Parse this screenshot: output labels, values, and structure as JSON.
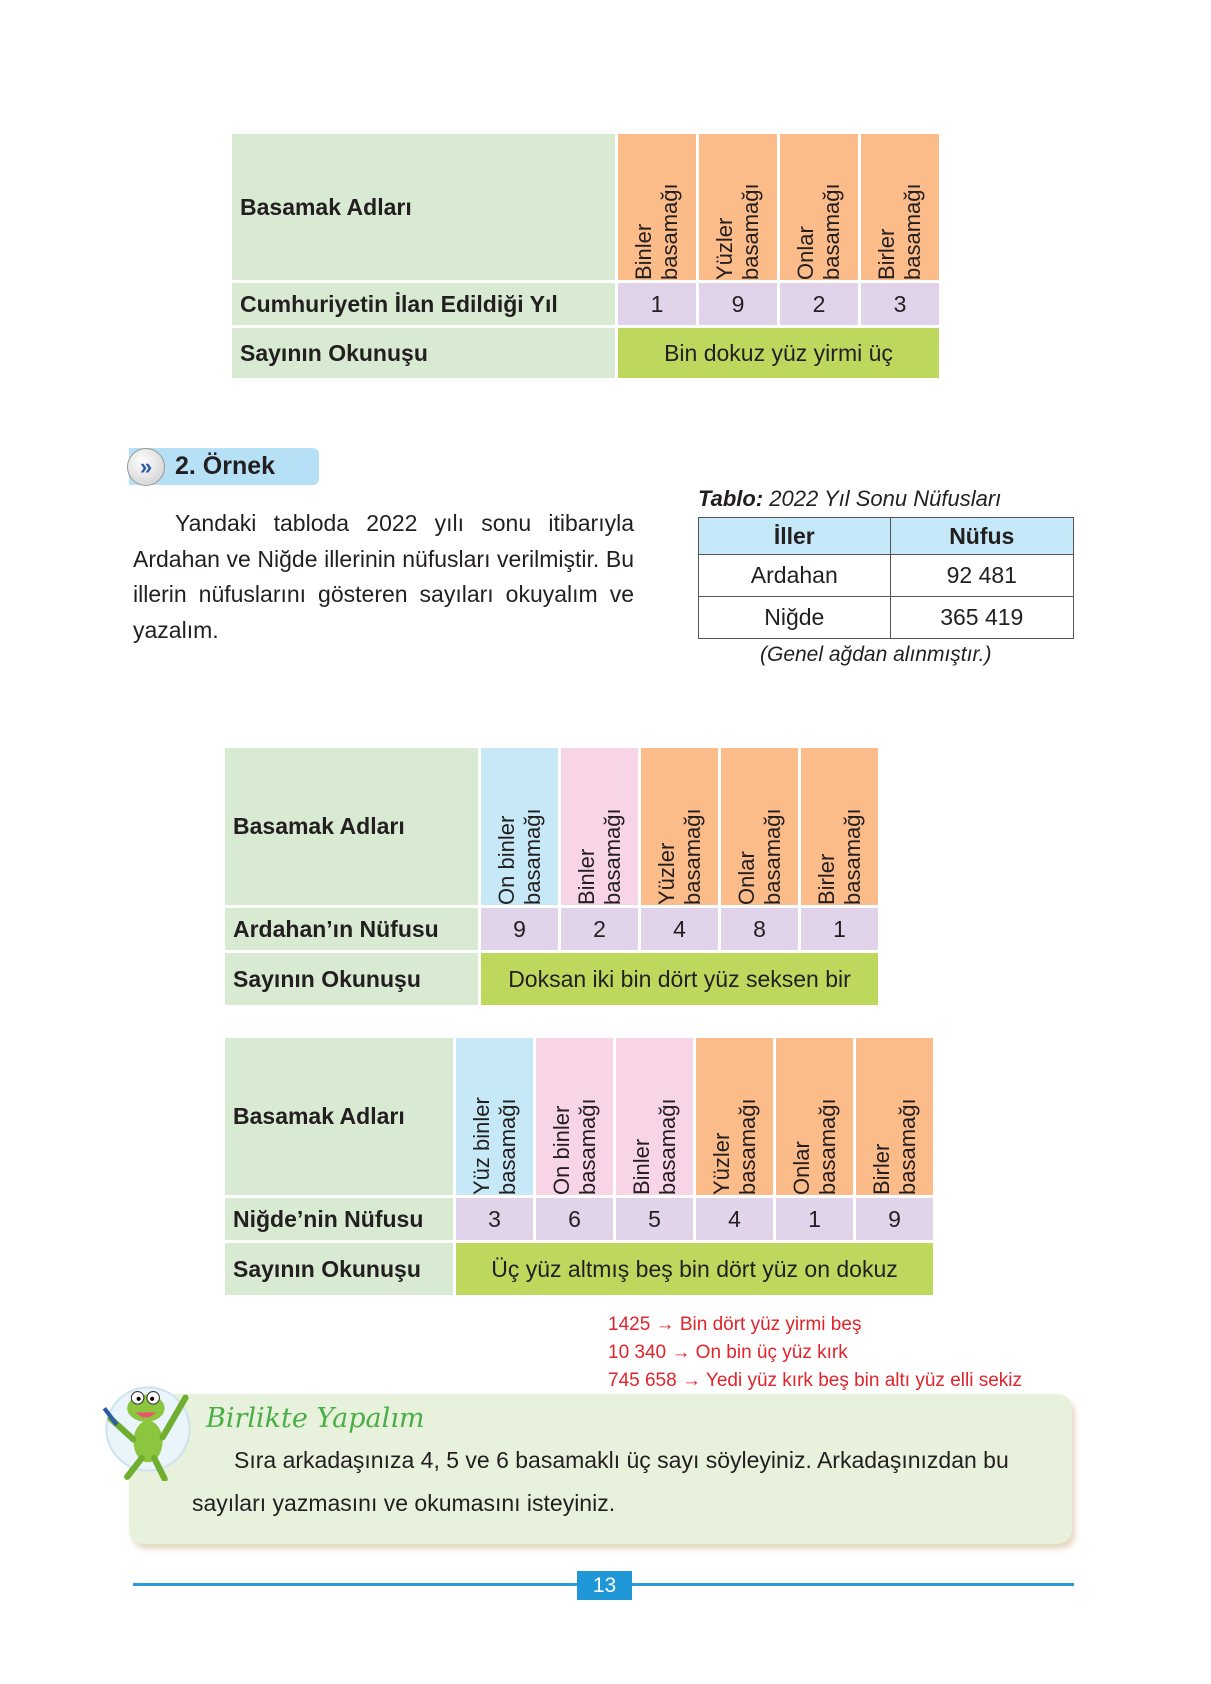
{
  "tables": [
    {
      "id": "t1",
      "label_header": "Basamak Adları",
      "row_label": "Cumhuriyetin İlan Edildiği Yıl",
      "reading_label": "Sayının Okunuşu",
      "columns": [
        {
          "name": "Binler basamağı",
          "color": "orange"
        },
        {
          "name": "Yüzler basamağı",
          "color": "orange"
        },
        {
          "name": "Onlar basamağı",
          "color": "orange"
        },
        {
          "name": "Birler basamağı",
          "color": "orange"
        }
      ],
      "digits": [
        "1",
        "9",
        "2",
        "3"
      ],
      "reading": "Bin dokuz yüz yirmi üç"
    },
    {
      "id": "t2",
      "label_header": "Basamak Adları",
      "row_label": "Ardahan’ın Nüfusu",
      "reading_label": "Sayının Okunuşu",
      "columns": [
        {
          "name": "On binler basamağı",
          "color": "blue"
        },
        {
          "name": "Binler basamağı",
          "color": "pink"
        },
        {
          "name": "Yüzler basamağı",
          "color": "orange"
        },
        {
          "name": "Onlar basamağı",
          "color": "orange"
        },
        {
          "name": "Birler basamağı",
          "color": "orange"
        }
      ],
      "digits": [
        "9",
        "2",
        "4",
        "8",
        "1"
      ],
      "reading": "Doksan iki bin dört yüz seksen bir"
    },
    {
      "id": "t3",
      "label_header": "Basamak Adları",
      "row_label": "Niğde’nin Nüfusu",
      "reading_label": "Sayının Okunuşu",
      "columns": [
        {
          "name": "Yüz binler basamağı",
          "color": "blue"
        },
        {
          "name": "On binler basamağı",
          "color": "pink"
        },
        {
          "name": "Binler basamağı",
          "color": "pink"
        },
        {
          "name": "Yüzler basamağı",
          "color": "orange"
        },
        {
          "name": "Onlar basamağı",
          "color": "orange"
        },
        {
          "name": "Birler basamağı",
          "color": "orange"
        }
      ],
      "digits": [
        "3",
        "6",
        "5",
        "4",
        "1",
        "9"
      ],
      "reading": "Üç yüz altmış beş bin dört yüz on dokuz"
    }
  ],
  "example": {
    "icon": "double-chevron-right-icon",
    "title": "2. Örnek",
    "paragraph": "Yandaki tabloda 2022 yılı sonu itibarıyla Ardahan ve Niğde illerinin nüfusları verilmiştir. Bu illerin nüfuslarını gösteren sayıları okuyalım ve yazalım."
  },
  "population_table": {
    "caption_bold": "Tablo:",
    "caption": " 2022 Yıl Sonu Nüfusları",
    "headers": [
      "İller",
      "Nüfus"
    ],
    "rows": [
      [
        "Ardahan",
        "92 481"
      ],
      [
        "Niğde",
        "365 419"
      ]
    ],
    "source": "(Genel ağdan alınmıştır.)"
  },
  "handwritten_notes": [
    "1425 → Bin dört yüz yirmi beş",
    "10 340 → On bin üç yüz kırk",
    "745 658 → Yedi yüz kırk beş bin altı yüz elli sekiz"
  ],
  "activity": {
    "mascot": "frog-mascot-icon",
    "title": "Birlikte Yapalım",
    "line1": "Sıra arkadaşınıza 4, 5 ve 6 basamaklı üç sayı söyleyiniz. Arkadaşınızdan bu",
    "line2": "sayıları yazmasını ve okumasını isteyiniz."
  },
  "page_number": "13",
  "colors": {
    "label": "#d9ead3",
    "orange": "#fbbc8a",
    "blue": "#c7e8f7",
    "pink": "#f7d4e6",
    "digit": "#e1d3ea",
    "reading": "#bed85e",
    "accent": "#1f96d6",
    "note": "#e0242b"
  }
}
